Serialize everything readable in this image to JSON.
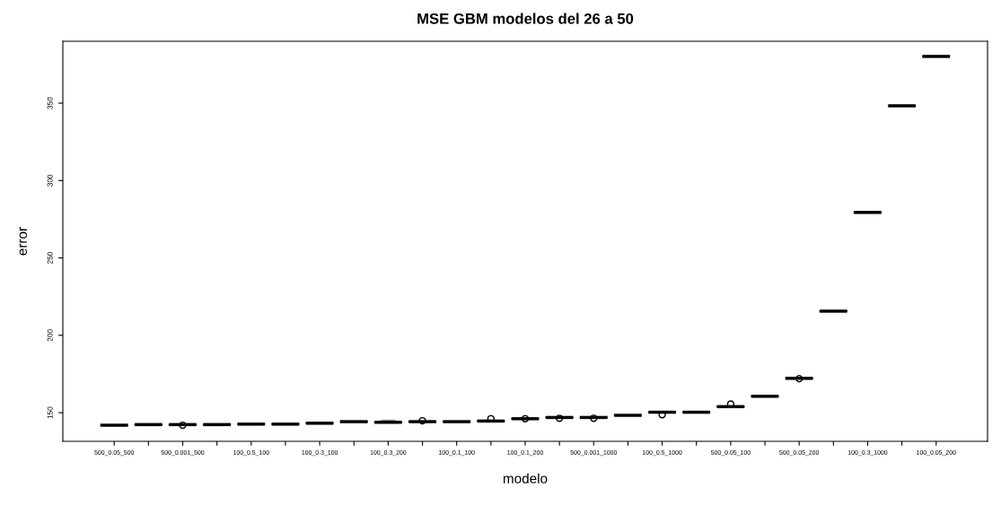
{
  "chart_data": {
    "type": "box",
    "title": "MSE GBM modelos del 26 a 50",
    "xlabel": "modelo",
    "ylabel": "error",
    "categories": [
      "500_0.05_500",
      null,
      "500_0.001_500",
      null,
      "100_0.5_100",
      null,
      "100_0.3_100",
      null,
      "100_0.3_200",
      null,
      "100_0.1_100",
      null,
      "100_0.1_200",
      null,
      "500_0.001_1000",
      null,
      "100_0.5_1000",
      null,
      "500_0.05_100",
      null,
      "500_0.05_200",
      null,
      "100_0.3_1000",
      null,
      "100_0.05_200"
    ],
    "boxes": [
      {
        "low": 141.9,
        "q1": 141.9,
        "median": 141.9,
        "q3": 141.9,
        "high": 141.9
      },
      {
        "low": 142.3,
        "q1": 142.3,
        "median": 142.3,
        "q3": 142.3,
        "high": 142.3
      },
      {
        "low": 142.3,
        "q1": 142.3,
        "median": 142.3,
        "q3": 142.3,
        "high": 142.3,
        "outliers": [
          141.9
        ]
      },
      {
        "low": 142.3,
        "q1": 142.3,
        "median": 142.3,
        "q3": 142.3,
        "high": 142.3
      },
      {
        "low": 142.6,
        "q1": 142.6,
        "median": 142.6,
        "q3": 142.6,
        "high": 142.6
      },
      {
        "low": 142.6,
        "q1": 142.6,
        "median": 142.6,
        "q3": 142.6,
        "high": 142.6
      },
      {
        "low": 143.2,
        "q1": 143.2,
        "median": 143.2,
        "q3": 143.2,
        "high": 143.2
      },
      {
        "low": 144.2,
        "q1": 144.2,
        "median": 144.2,
        "q3": 144.2,
        "high": 144.2
      },
      {
        "low": 143.8,
        "q1": 143.8,
        "median": 143.8,
        "q3": 143.8,
        "high": 145.2
      },
      {
        "low": 144.2,
        "q1": 144.2,
        "median": 144.2,
        "q3": 144.2,
        "high": 144.2,
        "outliers": [
          144.8
        ]
      },
      {
        "low": 144.2,
        "q1": 144.2,
        "median": 144.2,
        "q3": 144.2,
        "high": 144.2
      },
      {
        "low": 144.6,
        "q1": 144.6,
        "median": 144.6,
        "q3": 144.6,
        "high": 144.6,
        "outliers": [
          146.1
        ]
      },
      {
        "low": 146.1,
        "q1": 146.1,
        "median": 146.1,
        "q3": 146.1,
        "high": 146.1,
        "outliers": [
          146.1
        ]
      },
      {
        "low": 146.9,
        "q1": 146.9,
        "median": 146.9,
        "q3": 146.9,
        "high": 146.9,
        "outliers": [
          146.4
        ]
      },
      {
        "low": 146.9,
        "q1": 146.9,
        "median": 146.9,
        "q3": 146.9,
        "high": 146.9,
        "outliers": [
          146.4
        ]
      },
      {
        "low": 148.3,
        "q1": 148.3,
        "median": 148.3,
        "q3": 148.3,
        "high": 148.3
      },
      {
        "low": 150.3,
        "q1": 150.3,
        "median": 150.3,
        "q3": 150.3,
        "high": 150.3,
        "outliers": [
          148.7
        ]
      },
      {
        "low": 150.3,
        "q1": 150.3,
        "median": 150.3,
        "q3": 150.3,
        "high": 150.3
      },
      {
        "low": 153.9,
        "q1": 153.9,
        "median": 153.9,
        "q3": 153.9,
        "high": 153.9,
        "outliers": [
          155.6
        ]
      },
      {
        "low": 160.6,
        "q1": 160.6,
        "median": 160.6,
        "q3": 160.6,
        "high": 160.6
      },
      {
        "low": 172.2,
        "q1": 172.2,
        "median": 172.2,
        "q3": 172.2,
        "high": 172.2,
        "outliers": [
          172.0
        ]
      },
      {
        "low": 215.6,
        "q1": 215.6,
        "median": 215.6,
        "q3": 215.6,
        "high": 215.6
      },
      {
        "low": 279.4,
        "q1": 279.4,
        "median": 279.4,
        "q3": 279.4,
        "high": 279.4
      },
      {
        "low": 348.3,
        "q1": 348.3,
        "median": 348.3,
        "q3": 348.3,
        "high": 348.3
      },
      {
        "low": 380.2,
        "q1": 380.2,
        "median": 380.2,
        "q3": 380.2,
        "high": 380.2
      }
    ],
    "color": "#000000",
    "ylim": [
      131.5,
      390
    ],
    "yticks": [
      150,
      200,
      250,
      300,
      350
    ],
    "grid": false,
    "legend": false
  }
}
